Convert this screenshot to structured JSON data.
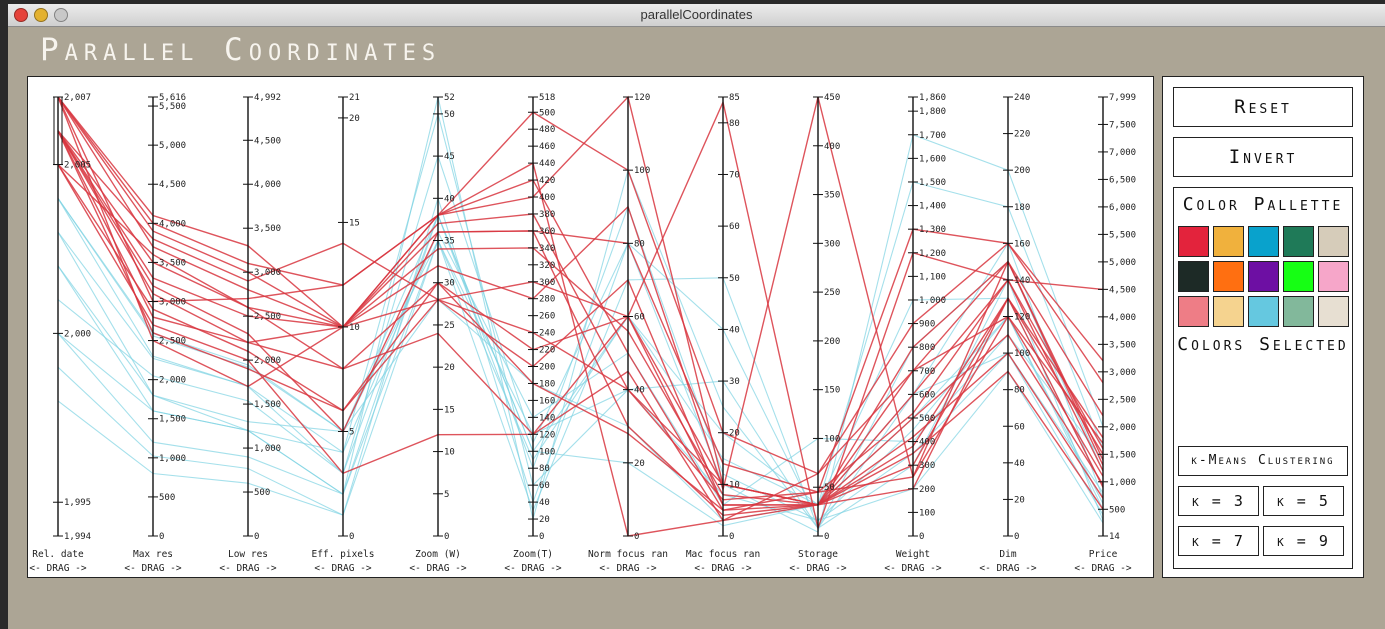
{
  "window": {
    "title": "parallelCoordinates"
  },
  "app_title": "Parallel Coordinates",
  "buttons": {
    "reset": "Reset",
    "invert": "Invert"
  },
  "palette": {
    "title": "Color Pallette",
    "selected_title": "Colors Selected",
    "colors": [
      "#e3233c",
      "#f0b13d",
      "#09a2cc",
      "#1f7a58",
      "#d6ccba",
      "#1d2a26",
      "#ff6f11",
      "#6d0fa3",
      "#16ff14",
      "#f6a6c9",
      "#ee7d86",
      "#f5d38f",
      "#65c8e0",
      "#82b89b",
      "#e7dfd2"
    ]
  },
  "clustering": {
    "title": "k-Means Clustering",
    "k_buttons": [
      "k = 3",
      "k = 5",
      "k = 7",
      "k = 9"
    ]
  },
  "chart_data": {
    "type": "parallel-coordinates",
    "drag_hint": "<- DRAG ->",
    "series_colors": {
      "selected": "#d8363f",
      "unselected": "#7fd3e2"
    },
    "axes": [
      {
        "label": "Rel. date",
        "min": 1994,
        "max": 2007,
        "ticks": [
          {
            "v": 1994,
            "t": "1,994"
          },
          {
            "v": 1995,
            "t": "1,995"
          },
          {
            "v": 2000,
            "t": "2,000"
          },
          {
            "v": 2005,
            "t": "2,005"
          },
          {
            "v": 2007,
            "t": "2,007"
          }
        ],
        "brush": [
          2005,
          2007
        ]
      },
      {
        "label": "Max res",
        "min": 0,
        "max": 5616,
        "ticks": [
          {
            "v": 0,
            "t": "0"
          },
          {
            "v": 500,
            "t": "500"
          },
          {
            "v": 1000,
            "t": "1,000"
          },
          {
            "v": 1500,
            "t": "1,500"
          },
          {
            "v": 2000,
            "t": "2,000"
          },
          {
            "v": 2500,
            "t": "2,500"
          },
          {
            "v": 3000,
            "t": "3,000"
          },
          {
            "v": 3500,
            "t": "3,500"
          },
          {
            "v": 4000,
            "t": "4,000"
          },
          {
            "v": 4500,
            "t": "4,500"
          },
          {
            "v": 5000,
            "t": "5,000"
          },
          {
            "v": 5500,
            "t": "5,500"
          },
          {
            "v": 5616,
            "t": "5,616"
          }
        ]
      },
      {
        "label": "Low res",
        "min": 0,
        "max": 4992,
        "ticks": [
          {
            "v": 0,
            "t": "0"
          },
          {
            "v": 500,
            "t": "500"
          },
          {
            "v": 1000,
            "t": "1,000"
          },
          {
            "v": 1500,
            "t": "1,500"
          },
          {
            "v": 2000,
            "t": "2,000"
          },
          {
            "v": 2500,
            "t": "2,500"
          },
          {
            "v": 3000,
            "t": "3,000"
          },
          {
            "v": 3500,
            "t": "3,500"
          },
          {
            "v": 4000,
            "t": "4,000"
          },
          {
            "v": 4500,
            "t": "4,500"
          },
          {
            "v": 4992,
            "t": "4,992"
          }
        ]
      },
      {
        "label": "Eff. pixels",
        "min": 0,
        "max": 21,
        "ticks": [
          {
            "v": 0,
            "t": "0"
          },
          {
            "v": 5,
            "t": "5"
          },
          {
            "v": 10,
            "t": "10"
          },
          {
            "v": 15,
            "t": "15"
          },
          {
            "v": 20,
            "t": "20"
          },
          {
            "v": 21,
            "t": "21"
          }
        ]
      },
      {
        "label": "Zoom (W)",
        "min": 0,
        "max": 52,
        "ticks": [
          {
            "v": 0,
            "t": "0"
          },
          {
            "v": 5,
            "t": "5"
          },
          {
            "v": 10,
            "t": "10"
          },
          {
            "v": 15,
            "t": "15"
          },
          {
            "v": 20,
            "t": "20"
          },
          {
            "v": 25,
            "t": "25"
          },
          {
            "v": 30,
            "t": "30"
          },
          {
            "v": 35,
            "t": "35"
          },
          {
            "v": 40,
            "t": "40"
          },
          {
            "v": 45,
            "t": "45"
          },
          {
            "v": 50,
            "t": "50"
          },
          {
            "v": 52,
            "t": "52"
          }
        ]
      },
      {
        "label": "Zoom(T)",
        "min": 0,
        "max": 518,
        "ticks": [
          {
            "v": 0,
            "t": "0"
          },
          {
            "v": 20,
            "t": "20"
          },
          {
            "v": 40,
            "t": "40"
          },
          {
            "v": 60,
            "t": "60"
          },
          {
            "v": 80,
            "t": "80"
          },
          {
            "v": 100,
            "t": "100"
          },
          {
            "v": 120,
            "t": "120"
          },
          {
            "v": 140,
            "t": "140"
          },
          {
            "v": 160,
            "t": "160"
          },
          {
            "v": 180,
            "t": "180"
          },
          {
            "v": 200,
            "t": "200"
          },
          {
            "v": 220,
            "t": "220"
          },
          {
            "v": 240,
            "t": "240"
          },
          {
            "v": 260,
            "t": "260"
          },
          {
            "v": 280,
            "t": "280"
          },
          {
            "v": 300,
            "t": "300"
          },
          {
            "v": 320,
            "t": "320"
          },
          {
            "v": 340,
            "t": "340"
          },
          {
            "v": 360,
            "t": "360"
          },
          {
            "v": 380,
            "t": "380"
          },
          {
            "v": 400,
            "t": "400"
          },
          {
            "v": 420,
            "t": "420"
          },
          {
            "v": 440,
            "t": "440"
          },
          {
            "v": 460,
            "t": "460"
          },
          {
            "v": 480,
            "t": "480"
          },
          {
            "v": 500,
            "t": "500"
          },
          {
            "v": 518,
            "t": "518"
          }
        ]
      },
      {
        "label": "Norm focus ran",
        "min": 0,
        "max": 120,
        "ticks": [
          {
            "v": 0,
            "t": "0"
          },
          {
            "v": 20,
            "t": "20"
          },
          {
            "v": 40,
            "t": "40"
          },
          {
            "v": 60,
            "t": "60"
          },
          {
            "v": 80,
            "t": "80"
          },
          {
            "v": 100,
            "t": "100"
          },
          {
            "v": 120,
            "t": "120"
          }
        ]
      },
      {
        "label": "Mac focus ran",
        "min": 0,
        "max": 85,
        "ticks": [
          {
            "v": 0,
            "t": "0"
          },
          {
            "v": 10,
            "t": "10"
          },
          {
            "v": 20,
            "t": "20"
          },
          {
            "v": 30,
            "t": "30"
          },
          {
            "v": 40,
            "t": "40"
          },
          {
            "v": 50,
            "t": "50"
          },
          {
            "v": 60,
            "t": "60"
          },
          {
            "v": 70,
            "t": "70"
          },
          {
            "v": 80,
            "t": "80"
          },
          {
            "v": 85,
            "t": "85"
          }
        ]
      },
      {
        "label": "Storage",
        "min": 0,
        "max": 450,
        "ticks": [
          {
            "v": 0,
            "t": "0"
          },
          {
            "v": 50,
            "t": "50"
          },
          {
            "v": 100,
            "t": "100"
          },
          {
            "v": 150,
            "t": "150"
          },
          {
            "v": 200,
            "t": "200"
          },
          {
            "v": 250,
            "t": "250"
          },
          {
            "v": 300,
            "t": "300"
          },
          {
            "v": 350,
            "t": "350"
          },
          {
            "v": 400,
            "t": "400"
          },
          {
            "v": 450,
            "t": "450"
          }
        ]
      },
      {
        "label": "Weight",
        "min": 0,
        "max": 1860,
        "ticks": [
          {
            "v": 0,
            "t": "0"
          },
          {
            "v": 100,
            "t": "100"
          },
          {
            "v": 200,
            "t": "200"
          },
          {
            "v": 300,
            "t": "300"
          },
          {
            "v": 400,
            "t": "400"
          },
          {
            "v": 500,
            "t": "500"
          },
          {
            "v": 600,
            "t": "600"
          },
          {
            "v": 700,
            "t": "700"
          },
          {
            "v": 800,
            "t": "800"
          },
          {
            "v": 900,
            "t": "900"
          },
          {
            "v": 1000,
            "t": "1,000"
          },
          {
            "v": 1100,
            "t": "1,100"
          },
          {
            "v": 1200,
            "t": "1,200"
          },
          {
            "v": 1300,
            "t": "1,300"
          },
          {
            "v": 1400,
            "t": "1,400"
          },
          {
            "v": 1500,
            "t": "1,500"
          },
          {
            "v": 1600,
            "t": "1,600"
          },
          {
            "v": 1700,
            "t": "1,700"
          },
          {
            "v": 1800,
            "t": "1,800"
          },
          {
            "v": 1860,
            "t": "1,860"
          }
        ]
      },
      {
        "label": "Dim",
        "min": 0,
        "max": 240,
        "ticks": [
          {
            "v": 0,
            "t": "0"
          },
          {
            "v": 20,
            "t": "20"
          },
          {
            "v": 40,
            "t": "40"
          },
          {
            "v": 60,
            "t": "60"
          },
          {
            "v": 80,
            "t": "80"
          },
          {
            "v": 100,
            "t": "100"
          },
          {
            "v": 120,
            "t": "120"
          },
          {
            "v": 140,
            "t": "140"
          },
          {
            "v": 160,
            "t": "160"
          },
          {
            "v": 180,
            "t": "180"
          },
          {
            "v": 200,
            "t": "200"
          },
          {
            "v": 220,
            "t": "220"
          },
          {
            "v": 240,
            "t": "240"
          }
        ]
      },
      {
        "label": "Price",
        "min": 14,
        "max": 7999,
        "ticks": [
          {
            "v": 14,
            "t": "14"
          },
          {
            "v": 500,
            "t": "500"
          },
          {
            "v": 1000,
            "t": "1,000"
          },
          {
            "v": 1500,
            "t": "1,500"
          },
          {
            "v": 2000,
            "t": "2,000"
          },
          {
            "v": 2500,
            "t": "2,500"
          },
          {
            "v": 3000,
            "t": "3,000"
          },
          {
            "v": 3500,
            "t": "3,500"
          },
          {
            "v": 4000,
            "t": "4,000"
          },
          {
            "v": 4500,
            "t": "4,500"
          },
          {
            "v": 5000,
            "t": "5,000"
          },
          {
            "v": 5500,
            "t": "5,500"
          },
          {
            "v": 6000,
            "t": "6,000"
          },
          {
            "v": 6500,
            "t": "6,500"
          },
          {
            "v": 7000,
            "t": "7,000"
          },
          {
            "v": 7500,
            "t": "7,500"
          },
          {
            "v": 7999,
            "t": "7,999"
          }
        ]
      }
    ],
    "records": [
      {
        "group": "selected",
        "values": [
          2007,
          3700,
          2800,
          10,
          37,
          380,
          40,
          10,
          32,
          300,
          130,
          1800
        ]
      },
      {
        "group": "selected",
        "values": [
          2007,
          4100,
          3300,
          10,
          36,
          360,
          80,
          14,
          45,
          250,
          150,
          2200
        ]
      },
      {
        "group": "selected",
        "values": [
          2006,
          2800,
          2200,
          8,
          30,
          220,
          60,
          10,
          32,
          600,
          140,
          1200
        ]
      },
      {
        "group": "selected",
        "values": [
          2006,
          3300,
          2500,
          10,
          28,
          200,
          70,
          6,
          32,
          800,
          150,
          1300
        ]
      },
      {
        "group": "selected",
        "values": [
          2007,
          3000,
          2700,
          12,
          38,
          420,
          50,
          5,
          45,
          520,
          140,
          1600
        ]
      },
      {
        "group": "selected",
        "values": [
          2005,
          3600,
          2600,
          10,
          34,
          340,
          56,
          8,
          32,
          700,
          120,
          1100
        ]
      },
      {
        "group": "selected",
        "values": [
          2006,
          2600,
          1900,
          6,
          28,
          300,
          60,
          6,
          32,
          380,
          130,
          900
        ]
      },
      {
        "group": "selected",
        "values": [
          2007,
          3900,
          3000,
          10,
          38,
          500,
          100,
          20,
          64,
          900,
          160,
          2800
        ]
      },
      {
        "group": "selected",
        "values": [
          2006,
          3200,
          2300,
          5,
          36,
          360,
          30,
          4,
          32,
          500,
          110,
          950
        ]
      },
      {
        "group": "selected",
        "values": [
          2005,
          2900,
          2100,
          6,
          30,
          180,
          28,
          5,
          32,
          420,
          100,
          700
        ]
      },
      {
        "group": "selected",
        "values": [
          2007,
          4000,
          3100,
          12,
          38,
          440,
          0,
          3,
          64,
          700,
          150,
          1400
        ]
      },
      {
        "group": "selected",
        "values": [
          2006,
          3500,
          2600,
          8,
          24,
          120,
          60,
          84,
          8,
          1200,
          140,
          4500
        ]
      },
      {
        "group": "selected",
        "values": [
          2006,
          3100,
          2200,
          10,
          32,
          280,
          90,
          9,
          450,
          250,
          120,
          1700
        ]
      },
      {
        "group": "selected",
        "values": [
          2005,
          2700,
          2000,
          3,
          12,
          120,
          45,
          3,
          32,
          350,
          90,
          500
        ]
      },
      {
        "group": "selected",
        "values": [
          2006,
          3800,
          2900,
          14,
          28,
          240,
          40,
          7,
          45,
          1300,
          160,
          3200
        ]
      },
      {
        "group": "selected",
        "values": [
          2007,
          2500,
          1700,
          10,
          38,
          400,
          120,
          10,
          32,
          200,
          130,
          1500
        ]
      },
      {
        "group": "unselected",
        "values": [
          2004,
          2300,
          1700,
          3,
          45,
          110,
          80,
          40,
          16,
          450,
          120,
          500
        ]
      },
      {
        "group": "unselected",
        "values": [
          2003,
          1800,
          1300,
          5,
          35,
          90,
          60,
          20,
          32,
          600,
          100,
          800
        ]
      },
      {
        "group": "unselected",
        "values": [
          2002,
          1600,
          1200,
          4,
          50,
          60,
          40,
          30,
          8,
          300,
          140,
          300
        ]
      },
      {
        "group": "unselected",
        "values": [
          2000,
          1200,
          900,
          2,
          38,
          100,
          20,
          2,
          32,
          1500,
          180,
          1600
        ]
      },
      {
        "group": "unselected",
        "values": [
          2001,
          2048,
          1536,
          3,
          38,
          80,
          90,
          12,
          16,
          200,
          90,
          250
        ]
      },
      {
        "group": "unselected",
        "values": [
          1999,
          1024,
          768,
          1,
          35,
          30,
          70,
          50,
          8,
          800,
          150,
          1200
        ]
      },
      {
        "group": "unselected",
        "values": [
          2003,
          2272,
          1704,
          4,
          36,
          140,
          50,
          6,
          100,
          400,
          110,
          1400
        ]
      },
      {
        "group": "unselected",
        "values": [
          2004,
          2560,
          1920,
          5,
          28,
          180,
          30,
          3,
          32,
          1000,
          130,
          900
        ]
      },
      {
        "group": "unselected",
        "values": [
          1998,
          800,
          600,
          1,
          40,
          40,
          80,
          10,
          4,
          1700,
          200,
          2000
        ]
      },
      {
        "group": "unselected",
        "values": [
          2002,
          1800,
          1200,
          2,
          52,
          20,
          100,
          25,
          8,
          600,
          160,
          700
        ]
      },
      {
        "group": "unselected",
        "values": [
          2000,
          1600,
          1200,
          2,
          35,
          120,
          40,
          8,
          16,
          350,
          100,
          400
        ]
      },
      {
        "group": "unselected",
        "values": [
          2004,
          2592,
          1944,
          5,
          38,
          100,
          60,
          15,
          32,
          500,
          120,
          600
        ]
      }
    ]
  }
}
